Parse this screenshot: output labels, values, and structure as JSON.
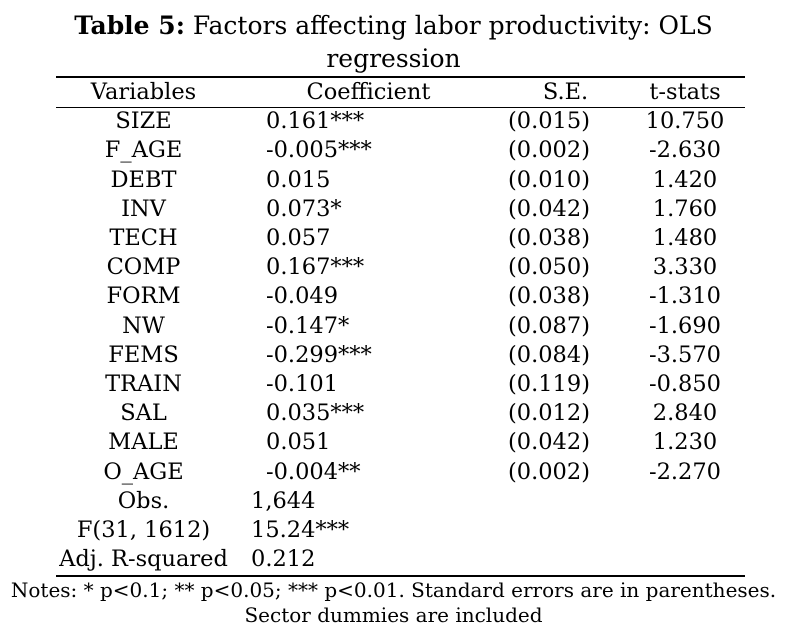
{
  "title": {
    "label": "Table 5:",
    "line1": "Factors affecting labor productivity: OLS",
    "line2": "regression"
  },
  "columns": [
    "Variables",
    "Coefficient",
    "S.E.",
    "t-stats"
  ],
  "rows": [
    {
      "variable": "SIZE",
      "coefficient": "0.161***",
      "se": "(0.015)",
      "t": "10.750"
    },
    {
      "variable": "F_AGE",
      "coefficient": "-0.005***",
      "se": "(0.002)",
      "t": "-2.630"
    },
    {
      "variable": "DEBT",
      "coefficient": "0.015",
      "se": "(0.010)",
      "t": "1.420"
    },
    {
      "variable": "INV",
      "coefficient": "0.073*",
      "se": "(0.042)",
      "t": "1.760"
    },
    {
      "variable": "TECH",
      "coefficient": "0.057",
      "se": "(0.038)",
      "t": "1.480"
    },
    {
      "variable": "COMP",
      "coefficient": "0.167***",
      "se": "(0.050)",
      "t": "3.330"
    },
    {
      "variable": "FORM",
      "coefficient": "-0.049",
      "se": "(0.038)",
      "t": "-1.310"
    },
    {
      "variable": "NW",
      "coefficient": "-0.147*",
      "se": "(0.087)",
      "t": "-1.690"
    },
    {
      "variable": "FEMS",
      "coefficient": "-0.299***",
      "se": "(0.084)",
      "t": "-3.570"
    },
    {
      "variable": "TRAIN",
      "coefficient": "-0.101",
      "se": "(0.119)",
      "t": "-0.850"
    },
    {
      "variable": "SAL",
      "coefficient": "0.035***",
      "se": "(0.012)",
      "t": "2.840"
    },
    {
      "variable": "MALE",
      "coefficient": "0.051",
      "se": "(0.042)",
      "t": "1.230"
    },
    {
      "variable": "O_AGE",
      "coefficient": "-0.004**",
      "se": "(0.002)",
      "t": "-2.270"
    }
  ],
  "stats": [
    {
      "label": "Obs.",
      "value": "1,644"
    },
    {
      "label": "F(31, 1612)",
      "value": "15.24***"
    },
    {
      "label": "Adj. R-squared",
      "value": "0.212"
    }
  ],
  "notes": {
    "line1": "Notes: * p<0.1; ** p<0.05; *** p<0.01. Standard errors are in parentheses.",
    "line2": "Sector dummies are included"
  }
}
